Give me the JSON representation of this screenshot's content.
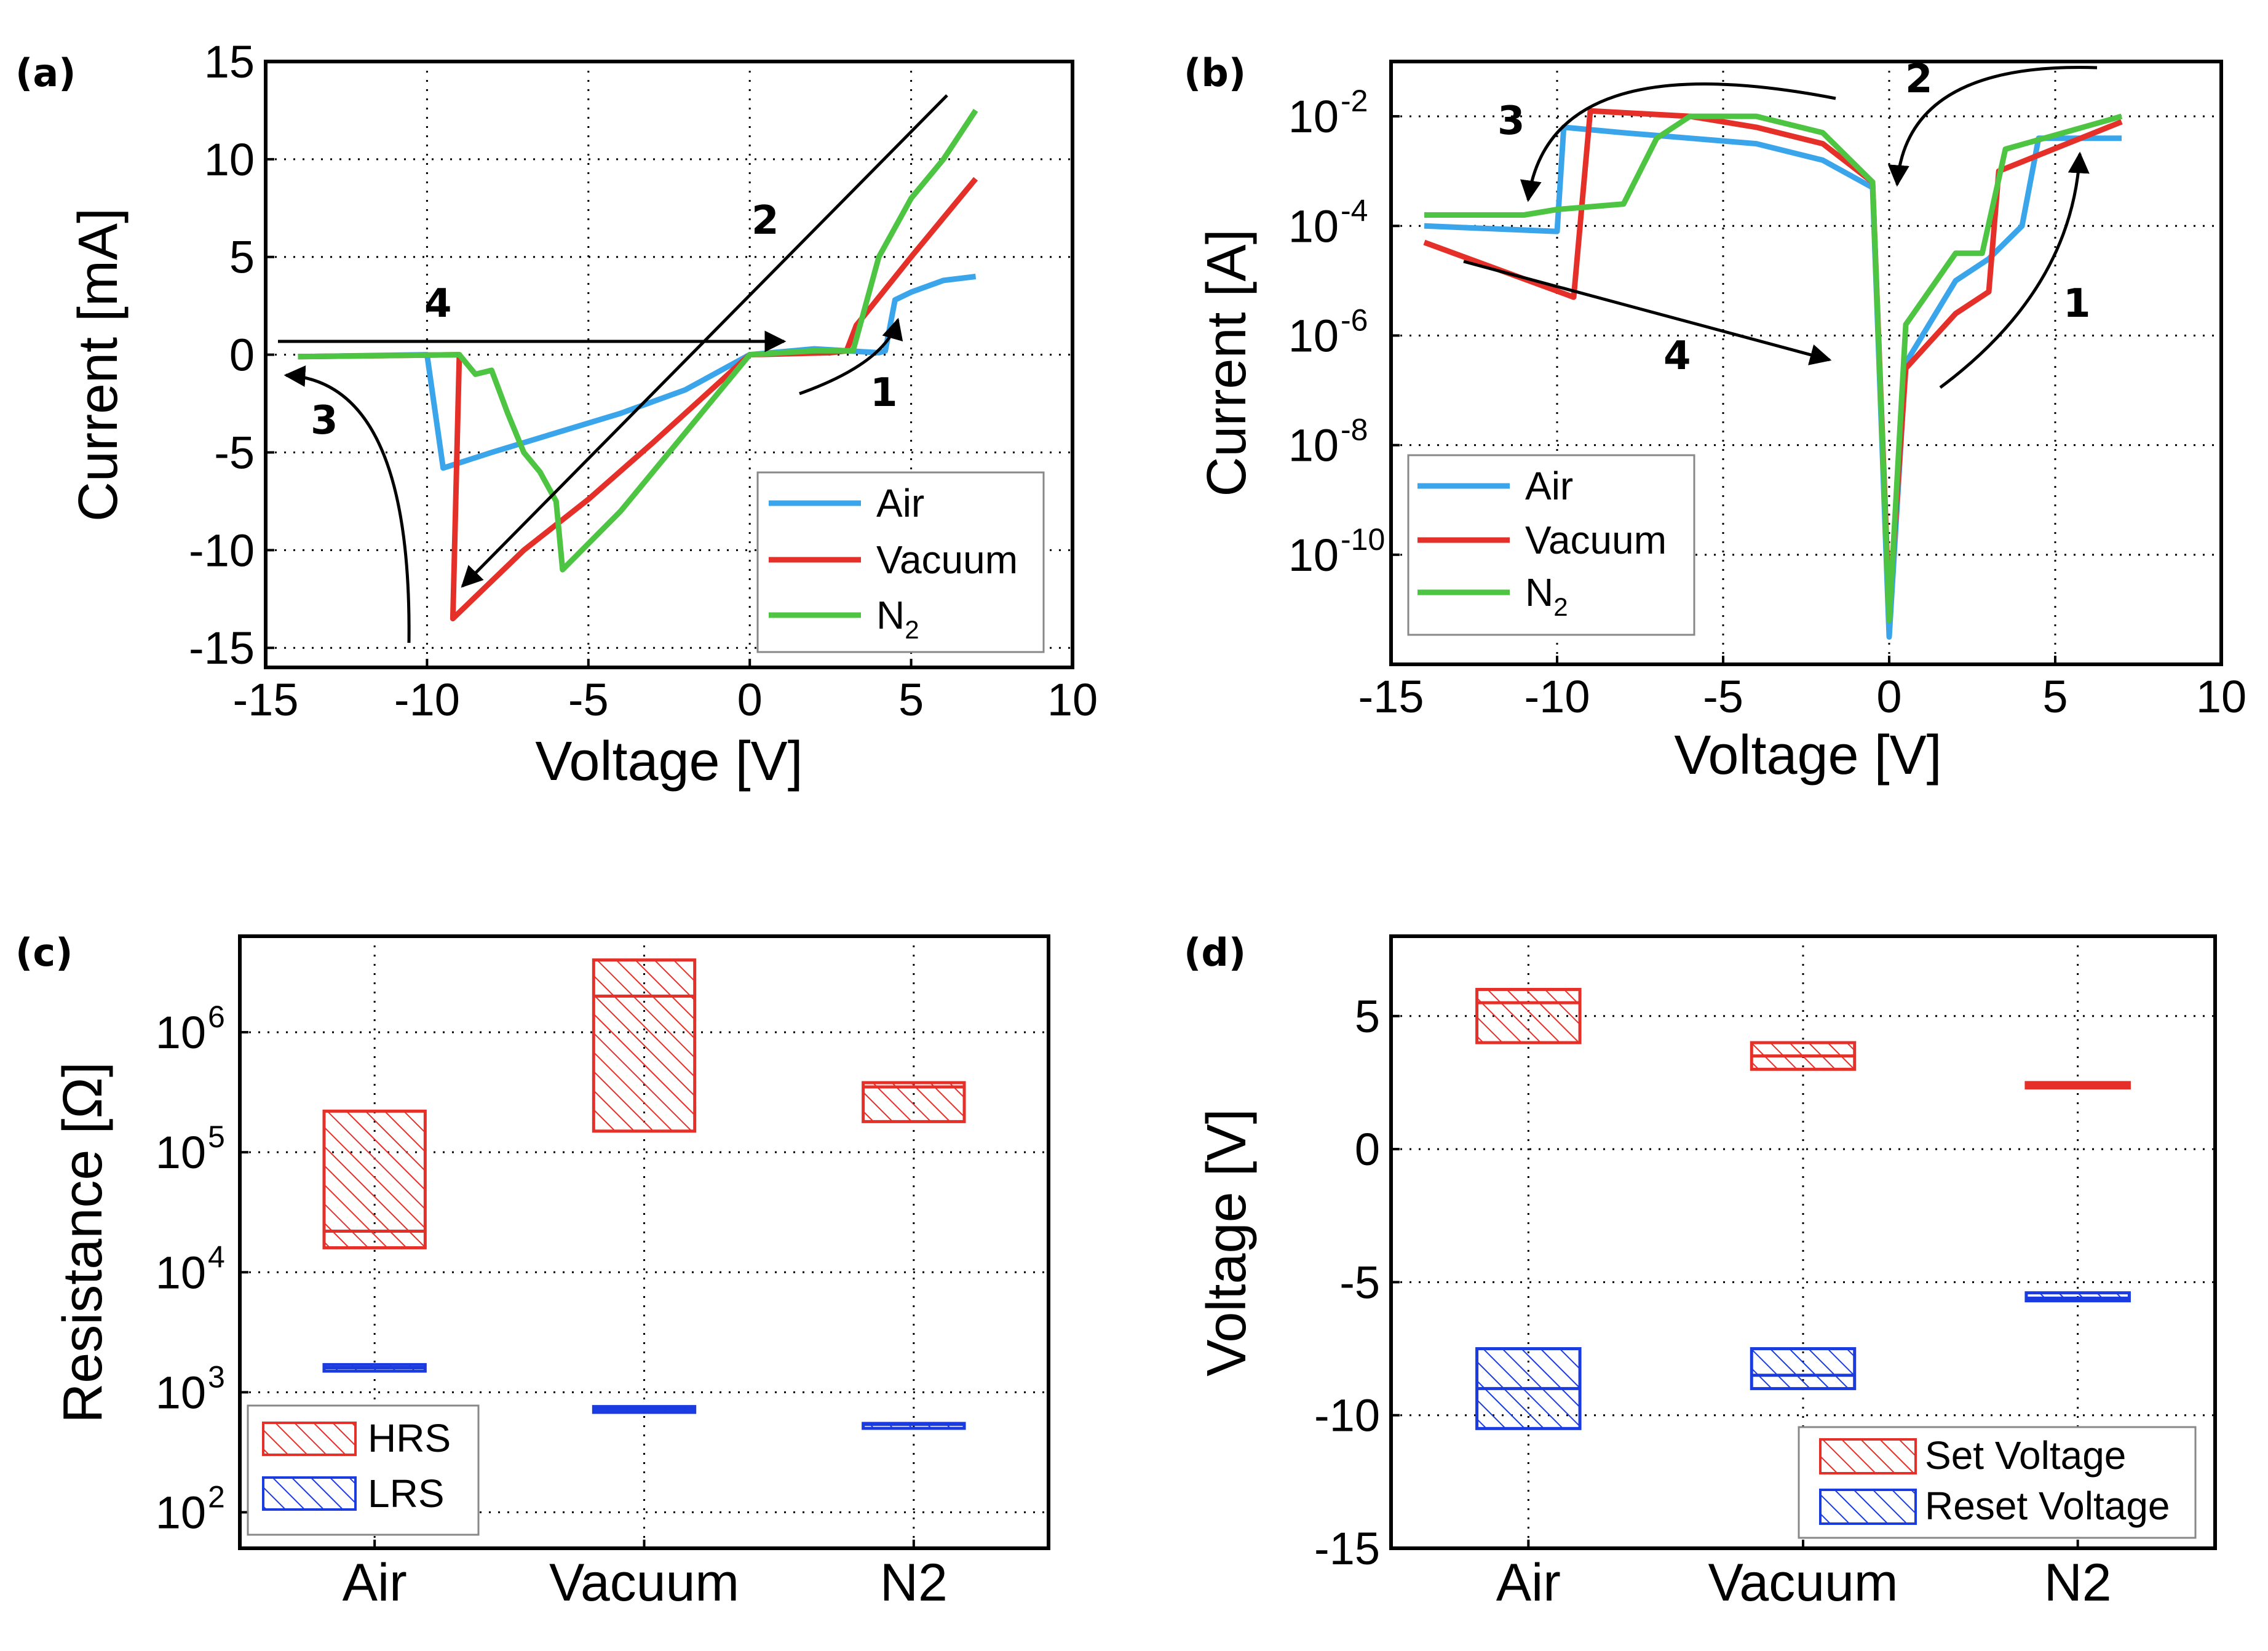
{
  "chart_data": [
    {
      "id": "a",
      "panel_label": "(a)",
      "type": "line",
      "xlabel": "Voltage [V]",
      "ylabel": "Current [mA]",
      "xlim": [
        -15,
        10
      ],
      "ylim": [
        -16,
        15
      ],
      "xticks": [
        -15,
        -10,
        -5,
        0,
        5,
        10
      ],
      "yticks": [
        -15,
        -10,
        -5,
        0,
        5,
        10,
        15
      ],
      "grid": true,
      "legend": {
        "position": "bottom-right",
        "entries": [
          "Air",
          "Vacuum",
          "N2"
        ]
      },
      "legend_labels": [
        "Air",
        "Vacuum",
        "N",
        "2"
      ],
      "annotations": [
        "1",
        "2",
        "3",
        "4"
      ],
      "series": [
        {
          "name": "Air",
          "color": "#3aa5ea",
          "points": [
            [
              -14,
              -0.1
            ],
            [
              -10,
              0
            ],
            [
              -9.5,
              -5.8
            ],
            [
              -8,
              -5
            ],
            [
              -6,
              -4
            ],
            [
              -4,
              -3
            ],
            [
              -2,
              -1.8
            ],
            [
              0,
              0
            ],
            [
              2,
              0.3
            ],
            [
              4,
              0.1
            ],
            [
              4.2,
              0.2
            ],
            [
              4.5,
              2.8
            ],
            [
              5,
              3.2
            ],
            [
              6,
              3.8
            ],
            [
              7,
              4
            ]
          ]
        },
        {
          "name": "Vacuum",
          "color": "#e53029",
          "points": [
            [
              -14,
              -0.1
            ],
            [
              -9,
              0
            ],
            [
              -9.2,
              -13.5
            ],
            [
              -7,
              -10
            ],
            [
              -5,
              -7.4
            ],
            [
              -3,
              -4.5
            ],
            [
              -1,
              -1.5
            ],
            [
              0,
              0
            ],
            [
              2.5,
              0.1
            ],
            [
              3,
              0.2
            ],
            [
              3.3,
              1.5
            ],
            [
              5,
              5
            ],
            [
              7,
              9
            ]
          ]
        },
        {
          "name": "N2",
          "color": "#4dc442",
          "points": [
            [
              -14,
              -0.1
            ],
            [
              -9,
              0
            ],
            [
              -8.5,
              -1
            ],
            [
              -8,
              -0.8
            ],
            [
              -7.5,
              -3
            ],
            [
              -7,
              -5
            ],
            [
              -6.5,
              -6
            ],
            [
              -6,
              -7.5
            ],
            [
              -5.8,
              -11
            ],
            [
              -4,
              -8
            ],
            [
              -2,
              -4
            ],
            [
              0,
              0
            ],
            [
              2,
              0.2
            ],
            [
              3.2,
              0.2
            ],
            [
              3.5,
              2
            ],
            [
              4,
              5
            ],
            [
              5,
              8
            ],
            [
              6,
              10
            ],
            [
              7,
              12.5
            ]
          ]
        }
      ]
    },
    {
      "id": "b",
      "panel_label": "(b)",
      "type": "line",
      "yscale": "log",
      "xlabel": "Voltage [V]",
      "ylabel": "Current [A]",
      "xlim": [
        -15,
        10
      ],
      "ylim_exponent": [
        -12,
        -1
      ],
      "xticks": [
        -15,
        -10,
        -5,
        0,
        5,
        10
      ],
      "ytick_exponents": [
        -2,
        -4,
        -6,
        -8,
        -10
      ],
      "grid": true,
      "legend": {
        "position": "bottom-left",
        "entries": [
          "Air",
          "Vacuum",
          "N2"
        ]
      },
      "legend_labels": [
        "Air",
        "Vacuum",
        "N",
        "2"
      ],
      "annotations": [
        "1",
        "2",
        "3",
        "4"
      ],
      "series": [
        {
          "name": "Air",
          "color": "#3aa5ea",
          "points_log10": [
            [
              -14,
              -4
            ],
            [
              -10,
              -4.1
            ],
            [
              -9.8,
              -2.2
            ],
            [
              -8,
              -2.3
            ],
            [
              -6,
              -2.4
            ],
            [
              -4,
              -2.5
            ],
            [
              -2,
              -2.8
            ],
            [
              -0.5,
              -3.3
            ],
            [
              0,
              -11.5
            ],
            [
              0.5,
              -6.5
            ],
            [
              2,
              -5
            ],
            [
              3,
              -4.6
            ],
            [
              4,
              -4
            ],
            [
              4.5,
              -2.4
            ],
            [
              7,
              -2.4
            ]
          ]
        },
        {
          "name": "Vacuum",
          "color": "#e53029",
          "points_log10": [
            [
              -14,
              -4.3
            ],
            [
              -9.5,
              -5.3
            ],
            [
              -9,
              -1.9
            ],
            [
              -6,
              -2
            ],
            [
              -4,
              -2.2
            ],
            [
              -2,
              -2.5
            ],
            [
              -0.5,
              -3.2
            ],
            [
              0,
              -11
            ],
            [
              0.5,
              -6.6
            ],
            [
              2,
              -5.6
            ],
            [
              3,
              -5.2
            ],
            [
              3.3,
              -3
            ],
            [
              7,
              -2.1
            ]
          ]
        },
        {
          "name": "N2",
          "color": "#4dc442",
          "points_log10": [
            [
              -14,
              -3.8
            ],
            [
              -11,
              -3.8
            ],
            [
              -10,
              -3.7
            ],
            [
              -8,
              -3.6
            ],
            [
              -7,
              -2.4
            ],
            [
              -6,
              -2
            ],
            [
              -4,
              -2
            ],
            [
              -2,
              -2.3
            ],
            [
              -0.5,
              -3.2
            ],
            [
              0,
              -11.2
            ],
            [
              0.5,
              -5.8
            ],
            [
              2,
              -4.5
            ],
            [
              2.8,
              -4.5
            ],
            [
              3.5,
              -2.6
            ],
            [
              7,
              -2
            ]
          ]
        }
      ]
    },
    {
      "id": "c",
      "panel_label": "(c)",
      "type": "box",
      "yscale": "log",
      "xlabel": "",
      "ylabel": "Resistance [Ω]",
      "categories": [
        "Air",
        "Vacuum",
        "N2"
      ],
      "ylim_exponent": [
        1.7,
        6.8
      ],
      "ytick_exponents": [
        2,
        3,
        4,
        5,
        6
      ],
      "grid": true,
      "legend": {
        "position": "bottom-left",
        "entries": [
          "HRS",
          "LRS"
        ]
      },
      "series": [
        {
          "name": "HRS",
          "color": "#e53029",
          "boxes": [
            {
              "low": 16000,
              "median": 22000,
              "high": 220000
            },
            {
              "low": 150000,
              "median": 2000000,
              "high": 4000000
            },
            {
              "low": 180000,
              "median": 350000,
              "high": 380000
            }
          ]
        },
        {
          "name": "LRS",
          "color": "#1a3be0",
          "boxes": [
            {
              "low": 1500,
              "median": 1600,
              "high": 1700
            },
            {
              "low": 680,
              "median": 720,
              "high": 760
            },
            {
              "low": 530,
              "median": 540,
              "high": 550
            }
          ]
        }
      ]
    },
    {
      "id": "d",
      "panel_label": "(d)",
      "type": "box",
      "xlabel": "",
      "ylabel": "Voltage [V]",
      "categories": [
        "Air",
        "Vacuum",
        "N2"
      ],
      "ylim": [
        -15,
        8
      ],
      "yticks": [
        -15,
        -10,
        -5,
        0,
        5
      ],
      "grid": true,
      "legend": {
        "position": "bottom-right",
        "entries": [
          "Set Voltage",
          "Reset Voltage"
        ]
      },
      "series": [
        {
          "name": "Set Voltage",
          "color": "#e53029",
          "boxes": [
            {
              "low": 4,
              "median": 5.5,
              "high": 6
            },
            {
              "low": 3,
              "median": 3.5,
              "high": 4
            },
            {
              "low": 2.3,
              "median": 2.4,
              "high": 2.5
            }
          ]
        },
        {
          "name": "Reset Voltage",
          "color": "#1a3be0",
          "boxes": [
            {
              "low": -10.5,
              "median": -9,
              "high": -7.5
            },
            {
              "low": -9,
              "median": -8.5,
              "high": -7.5
            },
            {
              "low": -5.7,
              "median": -5.6,
              "high": -5.4
            }
          ]
        }
      ]
    }
  ]
}
